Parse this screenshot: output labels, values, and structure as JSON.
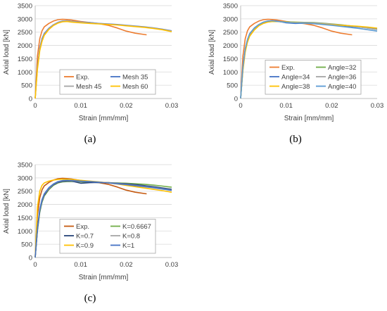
{
  "chart_data": [
    {
      "type": "line",
      "panel_label": "(a)",
      "xlabel": "Strain [mm/mm]",
      "ylabel": "Axial load [kN]",
      "xlim": [
        0,
        0.03
      ],
      "ylim": [
        0,
        3500
      ],
      "x_ticks": [
        "0",
        "0.01",
        "0.02",
        "0.03"
      ],
      "y_ticks": [
        "0",
        "500",
        "1000",
        "1500",
        "2000",
        "2500",
        "3000",
        "3500"
      ],
      "grid": "horizontal",
      "legend": {
        "position": "bottom-center",
        "columns": 2
      },
      "series": [
        {
          "name": "Exp.",
          "color": "#ed7d31",
          "x": [
            0,
            0.0005,
            0.001,
            0.0015,
            0.002,
            0.003,
            0.004,
            0.005,
            0.006,
            0.007,
            0.008,
            0.01,
            0.012,
            0.014,
            0.016,
            0.018,
            0.02,
            0.022,
            0.0245
          ],
          "y": [
            0,
            1600,
            2250,
            2550,
            2700,
            2830,
            2920,
            2970,
            2985,
            2975,
            2960,
            2900,
            2860,
            2820,
            2760,
            2660,
            2540,
            2460,
            2400
          ]
        },
        {
          "name": "Mesh 35",
          "color": "#4472c4",
          "x": [
            0,
            0.0005,
            0.001,
            0.0015,
            0.002,
            0.003,
            0.004,
            0.005,
            0.006,
            0.007,
            0.008,
            0.01,
            0.012,
            0.014,
            0.016,
            0.018,
            0.02,
            0.022,
            0.024,
            0.026,
            0.028,
            0.03
          ],
          "y": [
            0,
            1200,
            1900,
            2250,
            2450,
            2650,
            2780,
            2870,
            2920,
            2930,
            2910,
            2880,
            2860,
            2830,
            2810,
            2790,
            2760,
            2730,
            2700,
            2660,
            2610,
            2550
          ]
        },
        {
          "name": "Mesh 45",
          "color": "#a5a5a5",
          "x": [
            0,
            0.0005,
            0.001,
            0.0015,
            0.002,
            0.003,
            0.004,
            0.005,
            0.006,
            0.007,
            0.008,
            0.01,
            0.012,
            0.014,
            0.016,
            0.018,
            0.02,
            0.022,
            0.024,
            0.026,
            0.028,
            0.03
          ],
          "y": [
            0,
            1150,
            1850,
            2200,
            2420,
            2630,
            2770,
            2860,
            2910,
            2925,
            2905,
            2875,
            2850,
            2825,
            2800,
            2780,
            2750,
            2720,
            2690,
            2650,
            2600,
            2540
          ]
        },
        {
          "name": "Mesh 60",
          "color": "#ffc000",
          "x": [
            0,
            0.0005,
            0.001,
            0.0015,
            0.002,
            0.003,
            0.004,
            0.005,
            0.006,
            0.007,
            0.008,
            0.01,
            0.012,
            0.014,
            0.016,
            0.018,
            0.02,
            0.022,
            0.024,
            0.026,
            0.028,
            0.03
          ],
          "y": [
            0,
            1100,
            1800,
            2150,
            2380,
            2600,
            2750,
            2840,
            2890,
            2900,
            2880,
            2850,
            2830,
            2810,
            2790,
            2770,
            2740,
            2710,
            2680,
            2640,
            2590,
            2520
          ]
        }
      ]
    },
    {
      "type": "line",
      "panel_label": "(b)",
      "xlabel": "Strain [mm/mm]",
      "ylabel": "Axial load [kN]",
      "xlim": [
        0,
        0.03
      ],
      "ylim": [
        0,
        3500
      ],
      "x_ticks": [
        "0",
        "0.01",
        "0.02",
        "0.03"
      ],
      "y_ticks": [
        "0",
        "500",
        "1000",
        "1500",
        "2000",
        "2500",
        "3000",
        "3500"
      ],
      "grid": "horizontal",
      "legend": {
        "position": "bottom-center",
        "columns": 2
      },
      "series": [
        {
          "name": "Exp.",
          "color": "#ed7d31",
          "x": [
            0,
            0.0005,
            0.001,
            0.0015,
            0.002,
            0.003,
            0.004,
            0.005,
            0.006,
            0.007,
            0.008,
            0.01,
            0.012,
            0.014,
            0.016,
            0.018,
            0.02,
            0.022,
            0.0245
          ],
          "y": [
            0,
            1600,
            2250,
            2550,
            2700,
            2830,
            2920,
            2970,
            2985,
            2975,
            2960,
            2900,
            2860,
            2820,
            2760,
            2660,
            2540,
            2460,
            2400
          ]
        },
        {
          "name": "Angle=32",
          "color": "#70ad47",
          "x": [
            0,
            0.0005,
            0.001,
            0.0015,
            0.002,
            0.003,
            0.004,
            0.005,
            0.006,
            0.007,
            0.008,
            0.01,
            0.012,
            0.014,
            0.016,
            0.018,
            0.02,
            0.022,
            0.024,
            0.026,
            0.028,
            0.03
          ],
          "y": [
            0,
            1100,
            1800,
            2150,
            2380,
            2600,
            2750,
            2840,
            2890,
            2905,
            2900,
            2890,
            2880,
            2870,
            2860,
            2840,
            2810,
            2780,
            2740,
            2700,
            2650,
            2600
          ]
        },
        {
          "name": "Angle=34",
          "color": "#4472c4",
          "x": [
            0,
            0.0005,
            0.001,
            0.0015,
            0.002,
            0.003,
            0.004,
            0.005,
            0.006,
            0.007,
            0.008,
            0.01,
            0.012,
            0.014,
            0.016,
            0.018,
            0.02,
            0.022,
            0.024,
            0.026,
            0.028,
            0.03
          ],
          "y": [
            0,
            1150,
            1850,
            2200,
            2420,
            2640,
            2780,
            2870,
            2920,
            2930,
            2920,
            2850,
            2830,
            2840,
            2820,
            2800,
            2780,
            2750,
            2720,
            2690,
            2660,
            2620
          ]
        },
        {
          "name": "Angle=36",
          "color": "#a5a5a5",
          "x": [
            0,
            0.0005,
            0.001,
            0.0015,
            0.002,
            0.003,
            0.004,
            0.005,
            0.006,
            0.007,
            0.008,
            0.01,
            0.012,
            0.014,
            0.016,
            0.018,
            0.02,
            0.022,
            0.024,
            0.026,
            0.028,
            0.03
          ],
          "y": [
            0,
            1120,
            1820,
            2180,
            2400,
            2620,
            2770,
            2860,
            2900,
            2920,
            2910,
            2880,
            2870,
            2860,
            2850,
            2830,
            2800,
            2770,
            2740,
            2700,
            2650,
            2600
          ]
        },
        {
          "name": "Angle=38",
          "color": "#ffc000",
          "x": [
            0,
            0.0005,
            0.001,
            0.0015,
            0.002,
            0.003,
            0.004,
            0.005,
            0.006,
            0.007,
            0.008,
            0.01,
            0.012,
            0.014,
            0.016,
            0.018,
            0.02,
            0.022,
            0.024,
            0.026,
            0.028,
            0.03
          ],
          "y": [
            0,
            1050,
            1750,
            2120,
            2350,
            2580,
            2740,
            2830,
            2880,
            2900,
            2900,
            2880,
            2860,
            2840,
            2820,
            2800,
            2780,
            2760,
            2740,
            2720,
            2690,
            2650
          ]
        },
        {
          "name": "Angle=40",
          "color": "#5b9bd5",
          "x": [
            0,
            0.0005,
            0.001,
            0.0015,
            0.002,
            0.003,
            0.004,
            0.005,
            0.006,
            0.007,
            0.008,
            0.01,
            0.012,
            0.014,
            0.016,
            0.018,
            0.02,
            0.022,
            0.024,
            0.026,
            0.028,
            0.03
          ],
          "y": [
            0,
            1180,
            1880,
            2230,
            2450,
            2660,
            2790,
            2880,
            2920,
            2930,
            2910,
            2870,
            2850,
            2840,
            2820,
            2790,
            2760,
            2720,
            2680,
            2640,
            2590,
            2540
          ]
        }
      ]
    },
    {
      "type": "line",
      "panel_label": "(c)",
      "xlabel": "Strain [mm/mm]",
      "ylabel": "Axial load [kN]",
      "xlim": [
        0,
        0.03
      ],
      "ylim": [
        0,
        3500
      ],
      "x_ticks": [
        "0",
        "0.01",
        "0.02",
        "0.03"
      ],
      "y_ticks": [
        "0",
        "500",
        "1000",
        "1500",
        "2000",
        "2500",
        "3000",
        "3500"
      ],
      "grid": "horizontal",
      "legend": {
        "position": "bottom-center",
        "columns": 2
      },
      "series": [
        {
          "name": "Exp.",
          "color": "#c55a11",
          "x": [
            0,
            0.0005,
            0.001,
            0.0015,
            0.002,
            0.003,
            0.004,
            0.005,
            0.006,
            0.007,
            0.008,
            0.01,
            0.012,
            0.014,
            0.016,
            0.018,
            0.02,
            0.022,
            0.0245
          ],
          "y": [
            0,
            1600,
            2250,
            2550,
            2700,
            2830,
            2920,
            2970,
            2985,
            2975,
            2960,
            2900,
            2860,
            2820,
            2760,
            2660,
            2540,
            2460,
            2400
          ]
        },
        {
          "name": "K=0.6667",
          "color": "#70ad47",
          "x": [
            0,
            0.0005,
            0.001,
            0.0015,
            0.002,
            0.003,
            0.004,
            0.005,
            0.006,
            0.007,
            0.008,
            0.01,
            0.012,
            0.014,
            0.016,
            0.018,
            0.02,
            0.022,
            0.024,
            0.026,
            0.028,
            0.03
          ],
          "y": [
            0,
            1000,
            1700,
            2080,
            2320,
            2560,
            2720,
            2810,
            2850,
            2860,
            2860,
            2850,
            2840,
            2830,
            2820,
            2810,
            2800,
            2780,
            2760,
            2730,
            2690,
            2650
          ]
        },
        {
          "name": "K=0.7",
          "color": "#264478",
          "x": [
            0,
            0.0005,
            0.001,
            0.0015,
            0.002,
            0.003,
            0.004,
            0.005,
            0.006,
            0.007,
            0.008,
            0.01,
            0.012,
            0.014,
            0.016,
            0.018,
            0.02,
            0.022,
            0.024,
            0.026,
            0.028,
            0.03
          ],
          "y": [
            0,
            1050,
            1750,
            2120,
            2350,
            2590,
            2740,
            2830,
            2870,
            2880,
            2880,
            2800,
            2820,
            2830,
            2820,
            2800,
            2780,
            2750,
            2710,
            2670,
            2620,
            2570
          ]
        },
        {
          "name": "K=0.8",
          "color": "#a5a5a5",
          "x": [
            0,
            0.0005,
            0.001,
            0.0015,
            0.002,
            0.003,
            0.004,
            0.005,
            0.006,
            0.007,
            0.008,
            0.01,
            0.012,
            0.014,
            0.016,
            0.018,
            0.02,
            0.022,
            0.024,
            0.026,
            0.028,
            0.03
          ],
          "y": [
            0,
            1080,
            1780,
            2150,
            2380,
            2610,
            2760,
            2850,
            2890,
            2900,
            2890,
            2870,
            2860,
            2840,
            2820,
            2790,
            2760,
            2720,
            2680,
            2640,
            2590,
            2540
          ]
        },
        {
          "name": "K=0.9",
          "color": "#ffc000",
          "x": [
            0,
            0.0005,
            0.001,
            0.0015,
            0.002,
            0.003,
            0.004,
            0.005,
            0.006,
            0.007,
            0.008,
            0.01,
            0.012,
            0.014,
            0.016,
            0.018,
            0.02,
            0.022,
            0.024,
            0.026,
            0.028,
            0.03
          ],
          "y": [
            0,
            1900,
            2500,
            2720,
            2810,
            2880,
            2920,
            2940,
            2950,
            2950,
            2940,
            2910,
            2880,
            2850,
            2810,
            2770,
            2720,
            2670,
            2620,
            2570,
            2520,
            2460
          ]
        },
        {
          "name": "K=1",
          "color": "#4472c4",
          "x": [
            0,
            0.0005,
            0.001,
            0.0015,
            0.002,
            0.003,
            0.004,
            0.005,
            0.006,
            0.007,
            0.008,
            0.01,
            0.012,
            0.014,
            0.016,
            0.018,
            0.02,
            0.022,
            0.024,
            0.026,
            0.028,
            0.03
          ],
          "y": [
            0,
            1120,
            1820,
            2180,
            2400,
            2630,
            2770,
            2860,
            2900,
            2910,
            2900,
            2880,
            2860,
            2840,
            2810,
            2780,
            2750,
            2710,
            2670,
            2630,
            2580,
            2530
          ]
        }
      ]
    }
  ]
}
